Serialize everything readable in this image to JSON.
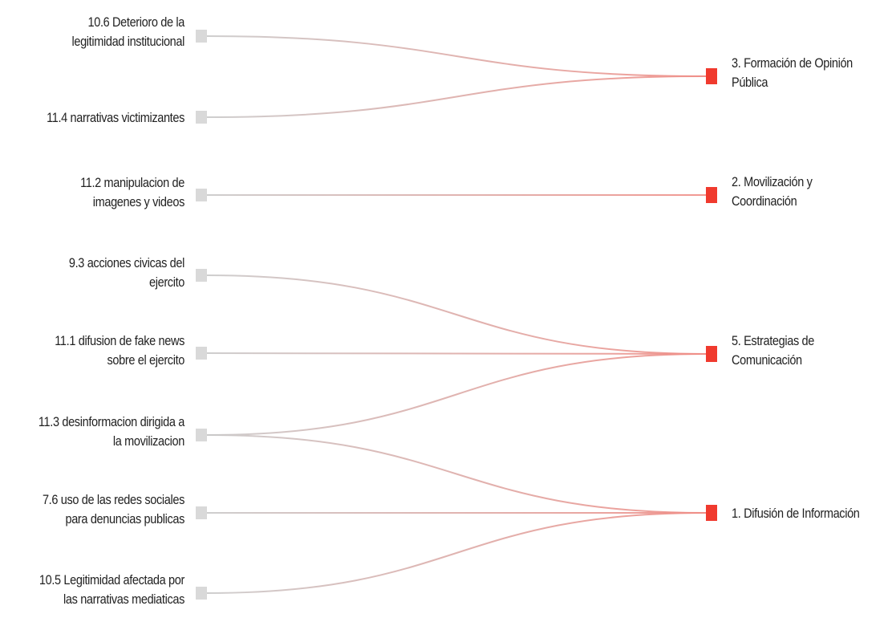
{
  "diagram": {
    "type": "sankey",
    "sources": [
      {
        "id": "s1",
        "label": "10.6 Deterioro de la legitimidad institucional"
      },
      {
        "id": "s2",
        "label": "11.4 narrativas victimizantes"
      },
      {
        "id": "s3",
        "label": "11.2 manipulacion de imagenes y videos"
      },
      {
        "id": "s4",
        "label": "9.3 acciones civicas del ejercito"
      },
      {
        "id": "s5",
        "label": "11.1 difusion de fake news sobre el ejercito"
      },
      {
        "id": "s6",
        "label": "11.3 desinformacion dirigida a la movilizacion"
      },
      {
        "id": "s7",
        "label": "7.6 uso de las redes sociales para denuncias publicas"
      },
      {
        "id": "s8",
        "label": "10.5 Legitimidad afectada por las narrativas mediaticas"
      }
    ],
    "targets": [
      {
        "id": "t1",
        "label": "3. Formación de Opinión Pública"
      },
      {
        "id": "t2",
        "label": "2. Movilización y Coordinación"
      },
      {
        "id": "t3",
        "label": "5. Estrategias de Comunicación"
      },
      {
        "id": "t4",
        "label": "1. Difusión de Información"
      }
    ],
    "links": [
      {
        "source": "s1",
        "target": "t1"
      },
      {
        "source": "s2",
        "target": "t1"
      },
      {
        "source": "s3",
        "target": "t2"
      },
      {
        "source": "s4",
        "target": "t3"
      },
      {
        "source": "s5",
        "target": "t3"
      },
      {
        "source": "s6",
        "target": "t3"
      },
      {
        "source": "s6",
        "target": "t4"
      },
      {
        "source": "s7",
        "target": "t4"
      },
      {
        "source": "s8",
        "target": "t4"
      }
    ],
    "colors": {
      "source_node": "#d9d9d9",
      "target_node": "#f03a2e",
      "link_start": "#c9c9c9",
      "link_end": "#f08e87"
    }
  }
}
